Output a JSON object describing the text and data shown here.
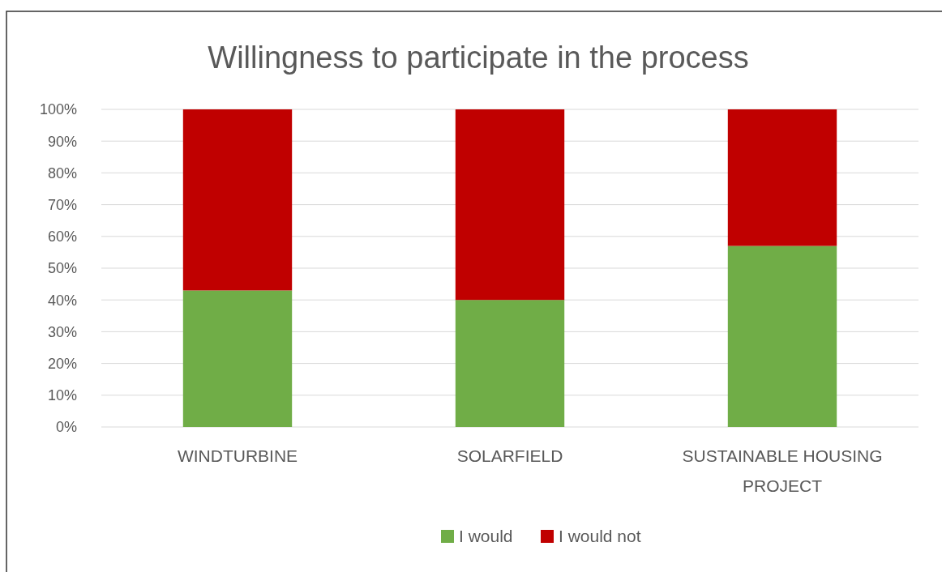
{
  "chart_data": {
    "type": "bar",
    "title": "Willingness to participate in the process",
    "categories": [
      "WINDTURBINE",
      "SOLARFIELD",
      "SUSTAINABLE HOUSING PROJECT"
    ],
    "stacked": true,
    "series": [
      {
        "name": "I would",
        "color": "#70ad47",
        "values": [
          43,
          40,
          57
        ]
      },
      {
        "name": "I would not",
        "color": "#c00000",
        "values": [
          57,
          60,
          43
        ]
      }
    ],
    "ylim": [
      0,
      100
    ],
    "yticks": [
      {
        "value": 0,
        "label": "0%"
      },
      {
        "value": 10,
        "label": "10%"
      },
      {
        "value": 20,
        "label": "20%"
      },
      {
        "value": 30,
        "label": "30%"
      },
      {
        "value": 40,
        "label": "40%"
      },
      {
        "value": 50,
        "label": "50%"
      },
      {
        "value": 60,
        "label": "60%"
      },
      {
        "value": 70,
        "label": "70%"
      },
      {
        "value": 80,
        "label": "80%"
      },
      {
        "value": 90,
        "label": "90%"
      },
      {
        "value": 100,
        "label": "100%"
      }
    ],
    "grid": "y",
    "legend": "bottom"
  }
}
